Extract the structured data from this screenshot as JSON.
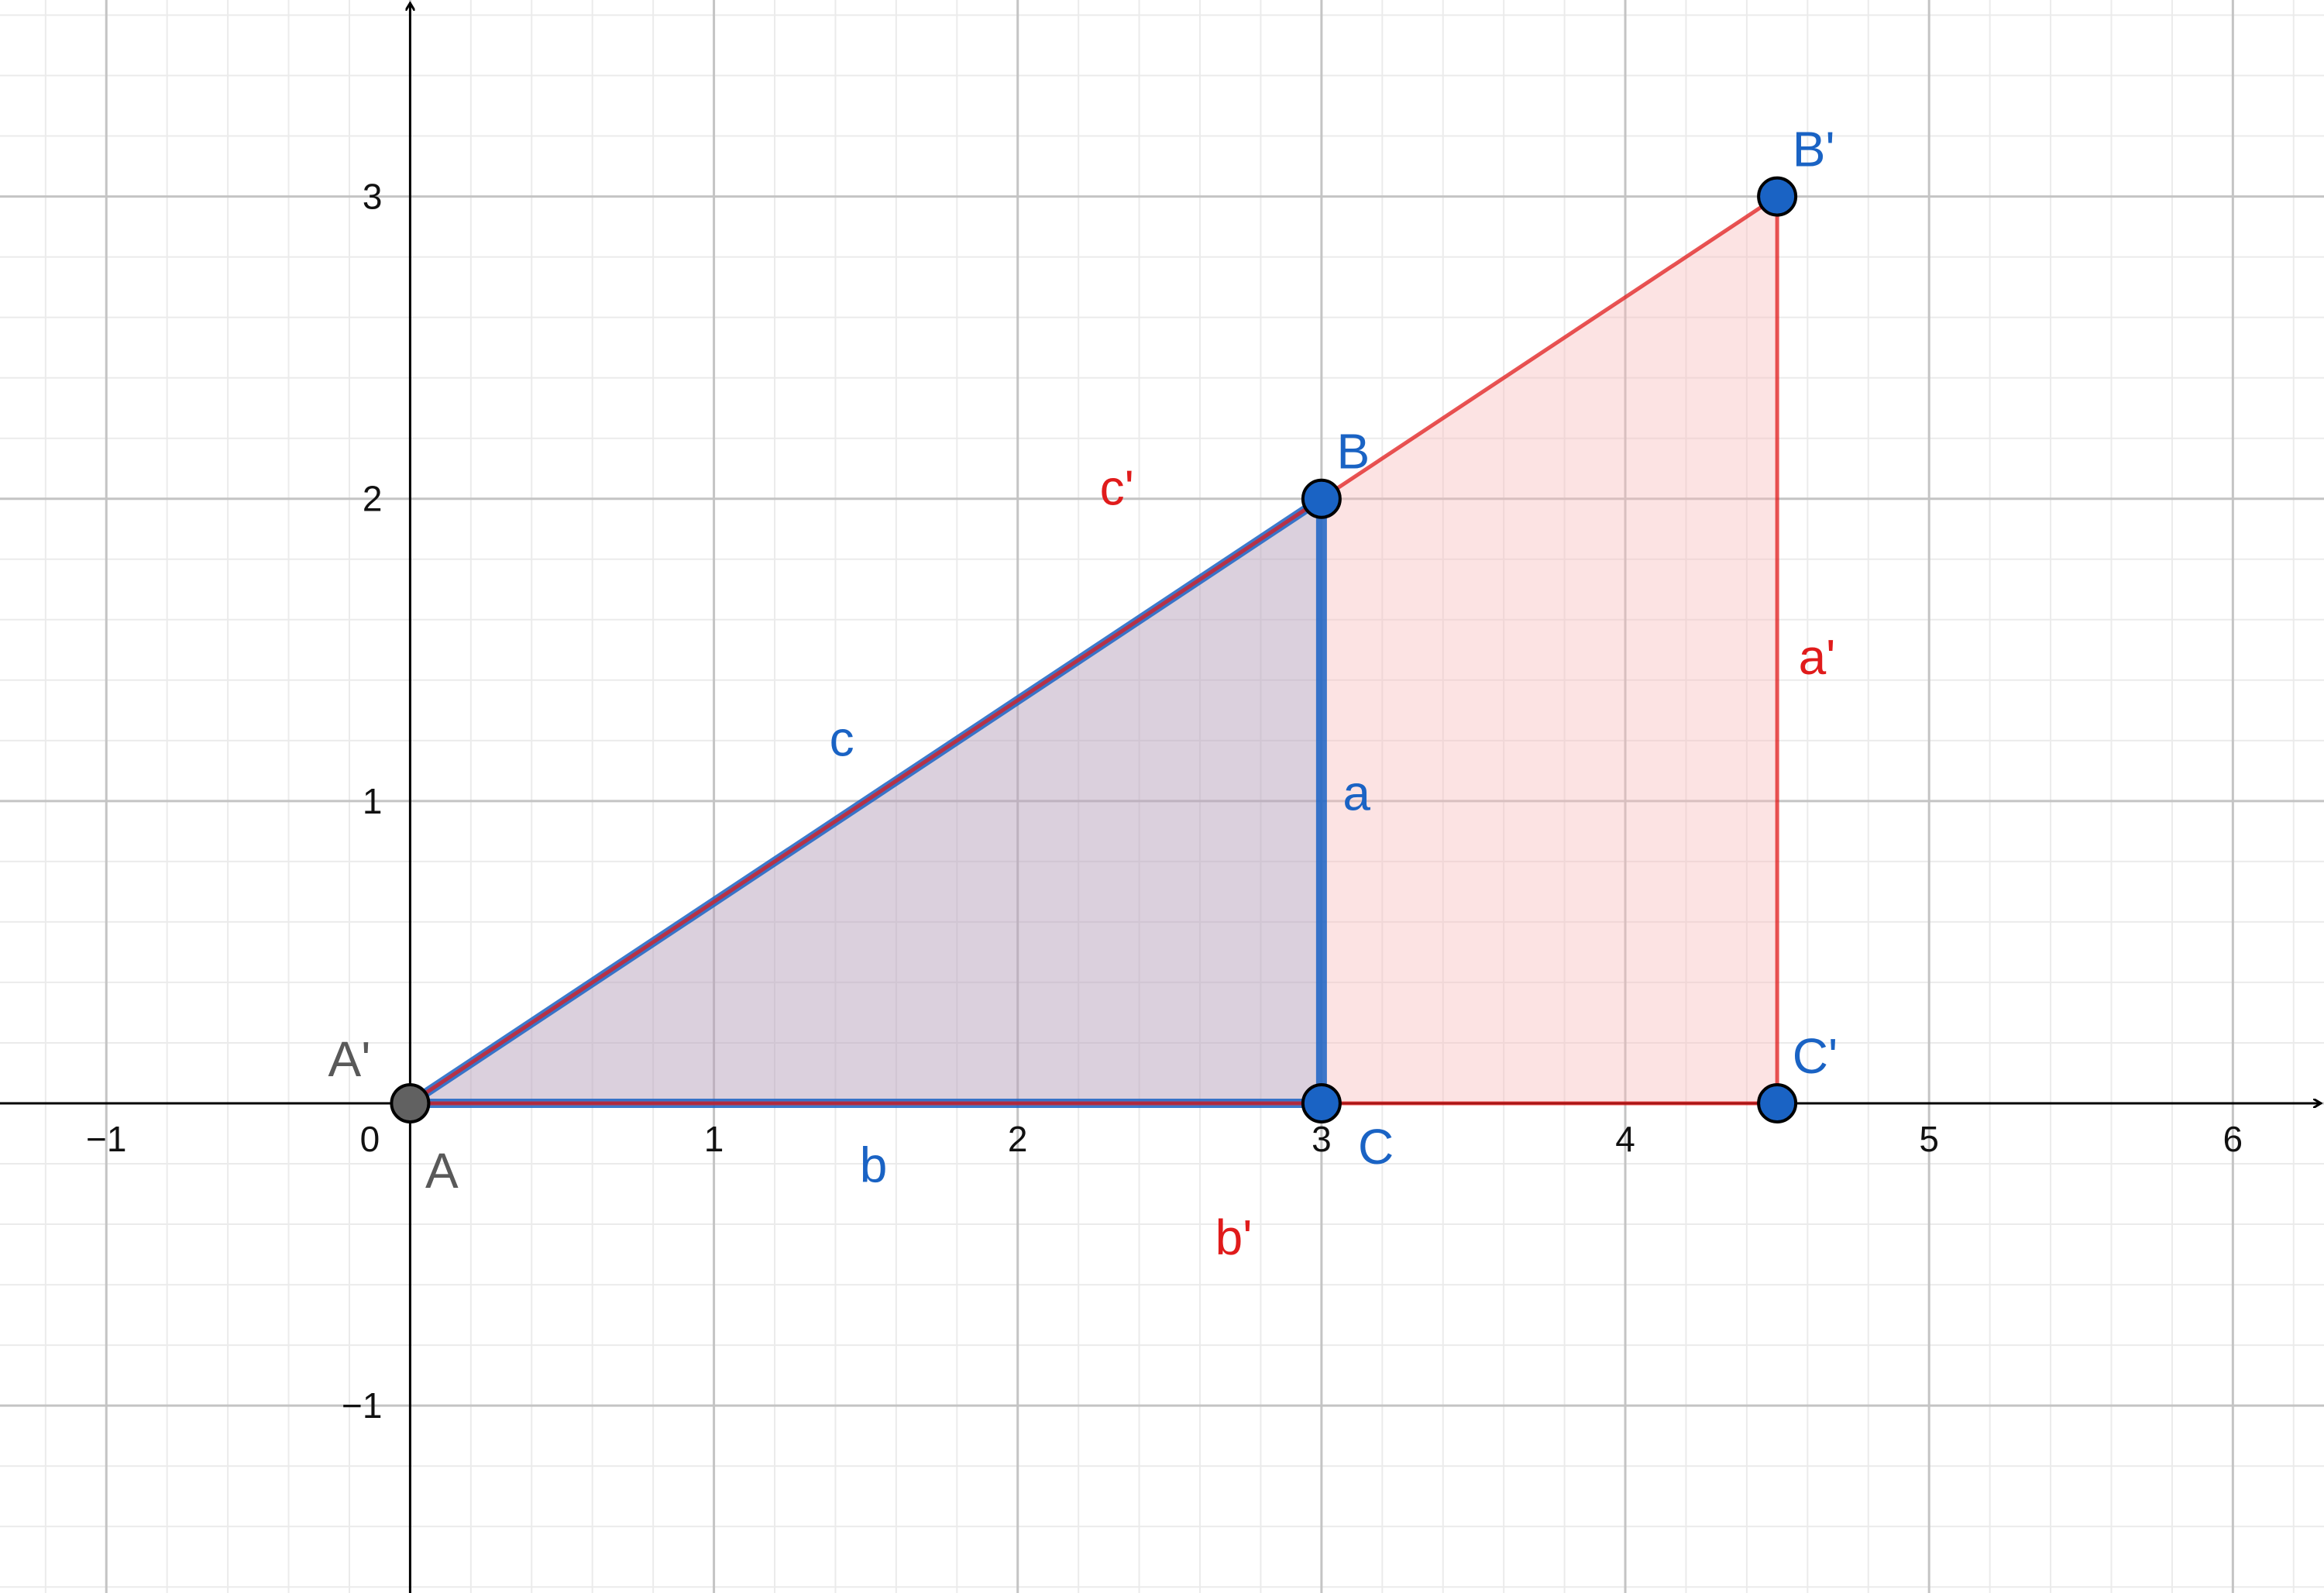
{
  "plane": {
    "x_range": [
      -1.35,
      6.3
    ],
    "y_range": [
      -1.62,
      3.65
    ],
    "grid": true,
    "minor_grid_step": 0.2,
    "major_grid_step": 1,
    "x_tick_labels": [
      {
        "value": -1,
        "text": "−1"
      },
      {
        "value": 0,
        "text": "0"
      },
      {
        "value": 1,
        "text": "1"
      },
      {
        "value": 2,
        "text": "2"
      },
      {
        "value": 3,
        "text": "3"
      },
      {
        "value": 4,
        "text": "4"
      },
      {
        "value": 5,
        "text": "5"
      },
      {
        "value": 6,
        "text": "6"
      }
    ],
    "y_tick_labels": [
      {
        "value": -1,
        "text": "−1"
      },
      {
        "value": 1,
        "text": "1"
      },
      {
        "value": 2,
        "text": "2"
      },
      {
        "value": 3,
        "text": "3"
      }
    ]
  },
  "colors": {
    "blue": "#1a63c4",
    "red": "#e01b1b",
    "gray_point": "#616161",
    "blue_fill": "#4a78c0",
    "red_fill": "#f7b9b9"
  },
  "triangle_original": {
    "vertices": {
      "A": [
        0,
        0
      ],
      "B": [
        3,
        2
      ],
      "C": [
        3,
        0
      ]
    },
    "side_labels": {
      "a": "a",
      "b": "b",
      "c": "c"
    },
    "vertex_labels": {
      "A": "A",
      "B": "B",
      "C": "C"
    }
  },
  "triangle_image": {
    "vertices": {
      "A'": [
        0,
        0
      ],
      "B'": [
        4.5,
        3
      ],
      "C'": [
        4.5,
        0
      ]
    },
    "side_labels": {
      "a'": "a'",
      "b'": "b'",
      "c'": "c'"
    },
    "vertex_labels": {
      "A'": "A'",
      "B'": "B'",
      "C'": "C'"
    }
  }
}
